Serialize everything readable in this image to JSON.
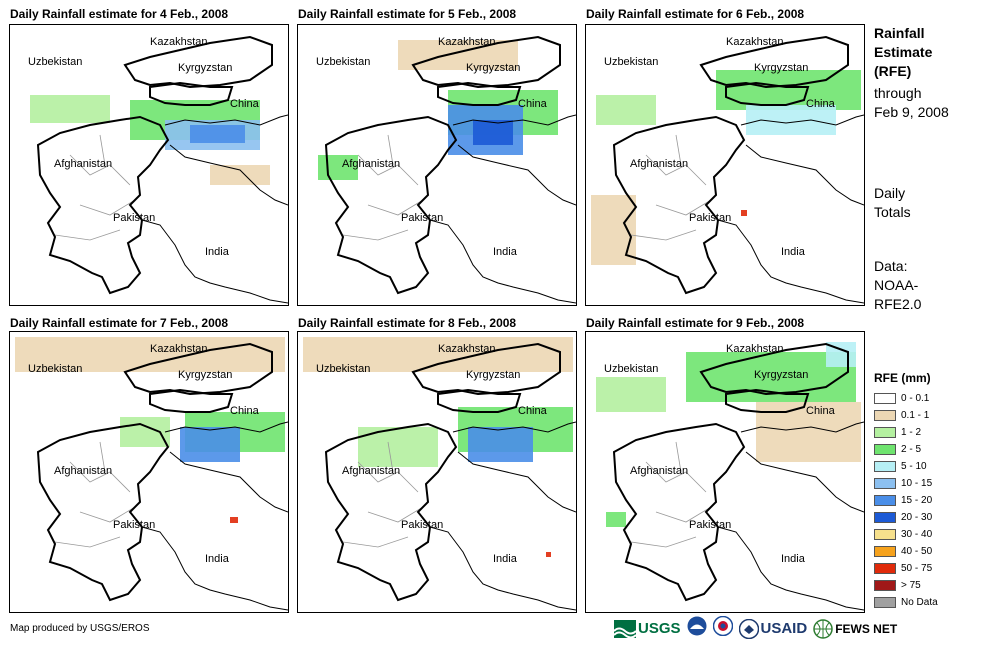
{
  "panels": [
    {
      "title": "Daily Rainfall estimate for 4 Feb., 2008"
    },
    {
      "title": "Daily Rainfall estimate for 5 Feb., 2008"
    },
    {
      "title": "Daily Rainfall estimate for 6 Feb., 2008"
    },
    {
      "title": "Daily Rainfall estimate for 7 Feb., 2008"
    },
    {
      "title": "Daily Rainfall estimate for 8 Feb., 2008"
    },
    {
      "title": "Daily Rainfall estimate for 9 Feb., 2008"
    }
  ],
  "map_labels": {
    "kazakhstan": "Kazakhstan",
    "uzbekistan": "Uzbekistan",
    "kyrgyzstan": "Kyrgyzstan",
    "china": "China",
    "afghanistan": "Afghanistan",
    "pakistan": "Pakistan",
    "india": "India"
  },
  "sidebar": {
    "title_lines": [
      "Rainfall",
      "Estimate",
      "(RFE)"
    ],
    "through": "through",
    "date": "Feb 9, 2008",
    "totals_lines": [
      "Daily",
      "Totals"
    ],
    "data_lines": [
      "Data:",
      "NOAA-",
      "RFE2.0"
    ]
  },
  "legend": {
    "title": "RFE (mm)",
    "items": [
      {
        "label": "0 - 0.1",
        "color": "#ffffff"
      },
      {
        "label": "0.1 - 1",
        "color": "#ecd7b4"
      },
      {
        "label": "1 - 2",
        "color": "#b4f0a0"
      },
      {
        "label": "2 - 5",
        "color": "#6fe46f"
      },
      {
        "label": "5 - 10",
        "color": "#b6eff5"
      },
      {
        "label": "10 - 15",
        "color": "#8cc0f0"
      },
      {
        "label": "15 - 20",
        "color": "#4a8ee8"
      },
      {
        "label": "20 - 30",
        "color": "#1c5ad6"
      },
      {
        "label": "30 - 40",
        "color": "#f6e08c"
      },
      {
        "label": "40 - 50",
        "color": "#f6a21c"
      },
      {
        "label": "50 - 75",
        "color": "#e02a0a"
      },
      {
        "label": "> 75",
        "color": "#a01818"
      },
      {
        "label": "No Data",
        "color": "#a0a0a0"
      }
    ]
  },
  "footer": {
    "credit": "Map produced by USGS/EROS",
    "logos": {
      "usgs": "USGS",
      "usaid": "USAID",
      "fewsnet": "FEWS NET"
    }
  },
  "colors": {
    "border": "#000000",
    "admin": "#999999",
    "accent_usaid": "#c8102e",
    "usgs_green": "#006f41"
  },
  "icons": [
    "usgs-logo-icon",
    "noaa-logo-icon",
    "nws-logo-icon",
    "usaid-seal-icon",
    "fewsnet-globe-icon"
  ]
}
